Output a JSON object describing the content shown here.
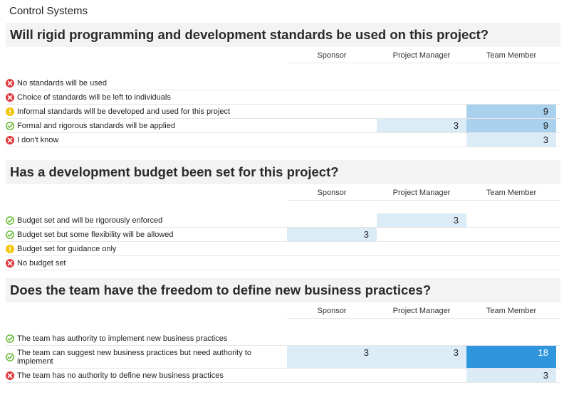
{
  "page_title": "Control Systems",
  "columns": [
    "Sponsor",
    "Project Manager",
    "Team Member"
  ],
  "colors": {
    "cell_low": "#dcecf7",
    "cell_mid": "#a9d1ee",
    "cell_high": "#2f96dd",
    "icon_red": "#e0393e",
    "icon_yellow": "#f5c400",
    "icon_green": "#5cb824"
  },
  "questions": [
    {
      "title": "Will rigid programming and development standards be used on this project?",
      "options": [
        {
          "label": "No standards will be used",
          "icon": "red-x-icon",
          "values": [
            "",
            "",
            ""
          ]
        },
        {
          "label": "Choice of standards will be left to individuals",
          "icon": "red-x-icon",
          "values": [
            "",
            "",
            ""
          ]
        },
        {
          "label": "Informal standards will be developed and used for this project",
          "icon": "yellow-warning-icon",
          "values": [
            "",
            "",
            "9"
          ]
        },
        {
          "label": "Formal and rigorous standards will be applied",
          "icon": "green-check-icon",
          "values": [
            "",
            "3",
            "9"
          ]
        },
        {
          "label": "I don't know",
          "icon": "red-x-icon",
          "values": [
            "",
            "",
            "3"
          ]
        }
      ]
    },
    {
      "title": "Has a development budget been set for this project?",
      "options": [
        {
          "label": "Budget set and will be rigorously enforced",
          "icon": "green-check-icon",
          "values": [
            "",
            "3",
            ""
          ]
        },
        {
          "label": "Budget set but some flexibility will be allowed",
          "icon": "green-check-icon",
          "values": [
            "3",
            "",
            ""
          ]
        },
        {
          "label": "Budget set for guidance only",
          "icon": "yellow-warning-icon",
          "values": [
            "",
            "",
            ""
          ]
        },
        {
          "label": "No budget set",
          "icon": "red-x-icon",
          "values": [
            "",
            "",
            ""
          ]
        }
      ]
    },
    {
      "title": "Does the team have the freedom to define new business practices?",
      "options": [
        {
          "label": "The team has authority to implement new business practices",
          "icon": "green-check-icon",
          "values": [
            "",
            "",
            ""
          ]
        },
        {
          "label": "The team can suggest new business practices but need authority to implement",
          "icon": "green-check-icon",
          "values": [
            "3",
            "3",
            "18"
          ]
        },
        {
          "label": "The team has no authority to define new business practices",
          "icon": "red-x-icon",
          "values": [
            "",
            "",
            "3"
          ]
        }
      ]
    }
  ]
}
